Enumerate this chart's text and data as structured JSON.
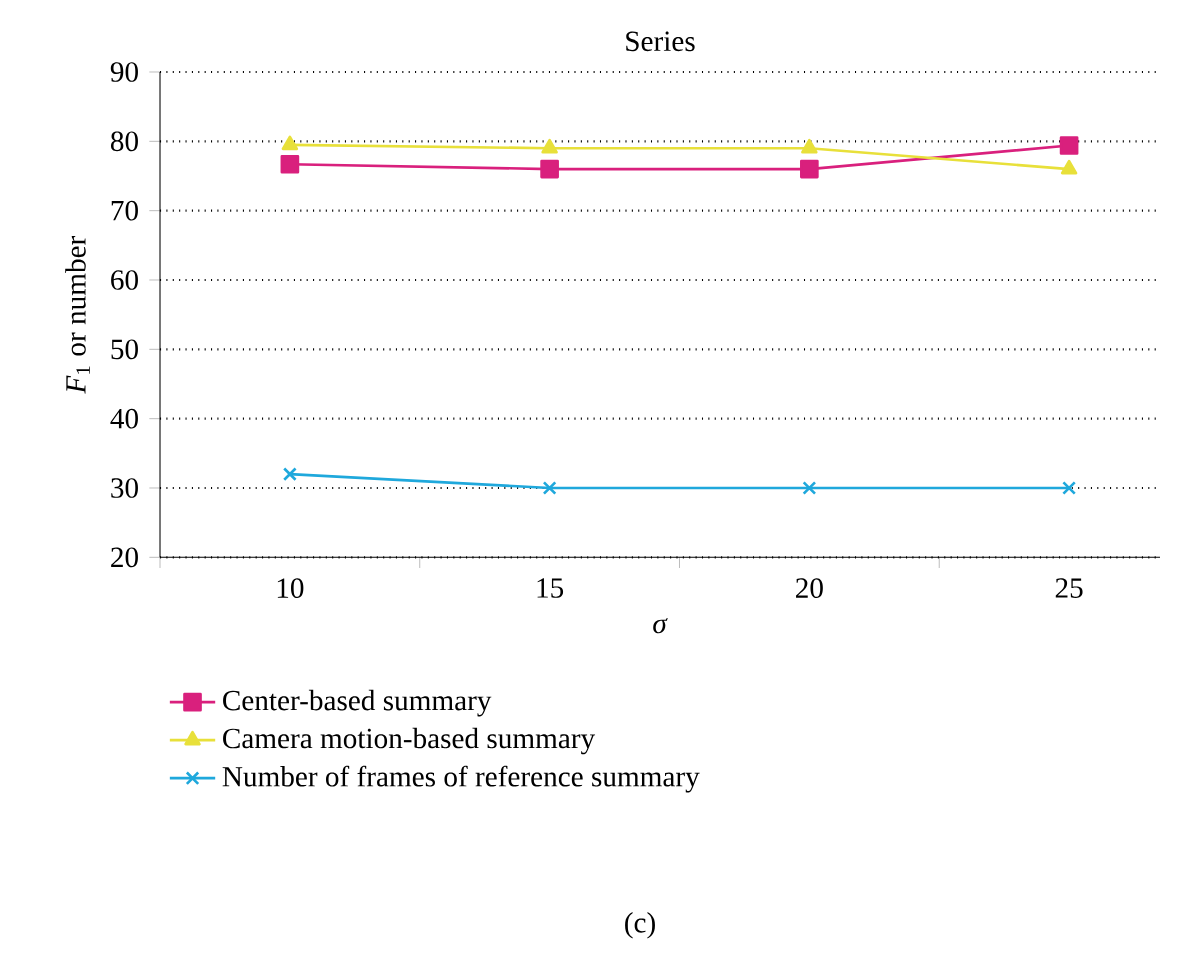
{
  "chart_data": {
    "type": "line",
    "title": "Series",
    "xlabel": "*σ*",
    "ylabel": "*F*$_{1}$ or number",
    "categories": [
      "10",
      "15",
      "20",
      "25"
    ],
    "series": [
      {
        "name": "Center-based summary",
        "color": "#d9207d",
        "marker": "square",
        "values": [
          76.7,
          76,
          76,
          79.4
        ]
      },
      {
        "name": "Camera motion-based summary",
        "color": "#e8e03a",
        "marker": "triangle",
        "values": [
          79.5,
          79,
          79,
          76
        ]
      },
      {
        "name": "Number of frames of reference summary",
        "color": "#1fa8dc",
        "marker": "cross",
        "values": [
          32,
          30,
          30,
          30
        ]
      }
    ],
    "ylim": [
      20,
      90
    ],
    "yticks": [
      20,
      30,
      40,
      50,
      60,
      70,
      80,
      90
    ],
    "grid": "y",
    "legend": "bottom",
    "annotations": [
      "(c)"
    ]
  }
}
